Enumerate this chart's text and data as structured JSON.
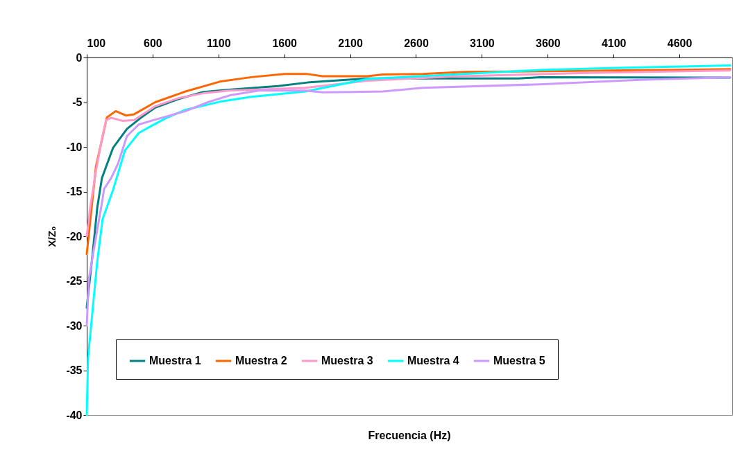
{
  "chart_data": {
    "type": "line",
    "xlabel": "Frecuencia (Hz)",
    "ylabel": "X/Z₀",
    "xlim": [
      100,
      5000
    ],
    "xticks": [
      100,
      600,
      1100,
      1600,
      2100,
      2600,
      3100,
      3600,
      4100,
      4600
    ],
    "ylim": [
      -40,
      0
    ],
    "yticks": [
      0,
      -5,
      -10,
      -15,
      -20,
      -25,
      -30,
      -35,
      -40
    ],
    "grid": false,
    "legend": "bottom",
    "marker": "none",
    "line_style": "solid",
    "series": [
      {
        "name": "Muestra 1",
        "color": "#008080",
        "x": [
          100,
          143,
          180,
          215,
          300,
          405,
          510,
          620,
          795,
          985,
          1180,
          1550,
          1775,
          2230,
          3380,
          3540,
          4985
        ],
        "values": [
          -28,
          -22.2,
          -16.8,
          -13.5,
          -10.1,
          -8.0,
          -6.75,
          -5.6,
          -4.65,
          -3.85,
          -3.6,
          -3.2,
          -2.8,
          -2.35,
          -2.35,
          -2.2,
          -2.25
        ]
      },
      {
        "name": "Muestra 2",
        "color": "#ff6600",
        "x": [
          100,
          170,
          253,
          320,
          400,
          460,
          620,
          850,
          1110,
          1350,
          1600,
          1775,
          1890,
          2230,
          2350,
          2650,
          2970,
          3840,
          4985
        ],
        "values": [
          -22,
          -12.2,
          -6.7,
          -6.0,
          -6.5,
          -6.35,
          -5.0,
          -3.8,
          -2.7,
          -2.2,
          -1.85,
          -1.85,
          -2.1,
          -2.1,
          -1.9,
          -1.85,
          -1.6,
          -1.5,
          -1.3
        ]
      },
      {
        "name": "Muestra 3",
        "color": "#ff99cc",
        "x": [
          100,
          126,
          170,
          215,
          247,
          285,
          375,
          460,
          620,
          795,
          985,
          1180,
          1760,
          2230,
          2925,
          3840,
          4985
        ],
        "values": [
          -20,
          -16.8,
          -12.7,
          -9.1,
          -7.0,
          -6.75,
          -7.1,
          -7.0,
          -5.45,
          -4.55,
          -4.0,
          -3.7,
          -3.4,
          -2.6,
          -2.1,
          -1.75,
          -1.45
        ]
      },
      {
        "name": "Muestra 4",
        "color": "#00ffff",
        "x": [
          100,
          110,
          143,
          180,
          220,
          300,
          390,
          495,
          585,
          705,
          850,
          1110,
          1350,
          1760,
          2230,
          3540,
          4180,
          4985
        ],
        "values": [
          -40,
          -33.6,
          -28.5,
          -22.8,
          -18.1,
          -14.8,
          -10.4,
          -8.45,
          -7.7,
          -6.75,
          -5.85,
          -4.95,
          -4.4,
          -3.8,
          -2.4,
          -1.4,
          -1.15,
          -0.9
        ]
      },
      {
        "name": "Muestra 5",
        "color": "#cc99ff",
        "x": [
          100,
          116,
          163,
          215,
          232,
          285,
          337,
          405,
          495,
          585,
          705,
          850,
          1020,
          1195,
          1405,
          1760,
          1890,
          2350,
          2650,
          3540,
          4300,
          4985
        ],
        "values": [
          -30,
          -24.8,
          -20.7,
          -16.3,
          -14.7,
          -13.5,
          -11.9,
          -8.8,
          -7.5,
          -7.1,
          -6.6,
          -6.0,
          -5.0,
          -4.2,
          -3.7,
          -3.7,
          -3.9,
          -3.8,
          -3.4,
          -3.0,
          -2.5,
          -2.2
        ]
      }
    ]
  }
}
